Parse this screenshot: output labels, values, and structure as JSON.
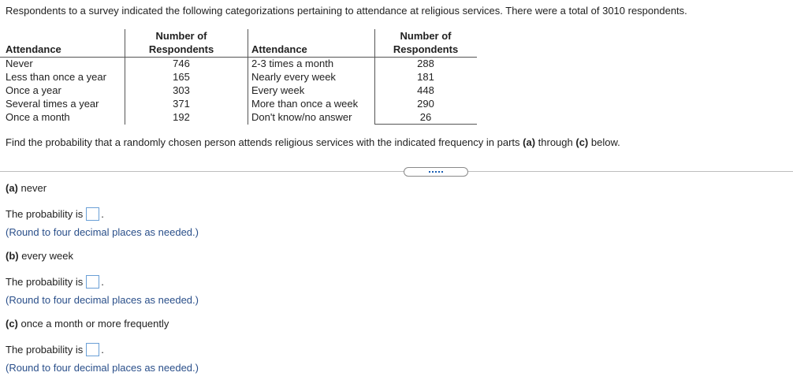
{
  "intro": "Respondents to a survey indicated the following categorizations pertaining to attendance at religious services. There were a total of 3010 respondents.",
  "table": {
    "left_header_attendance": "Attendance",
    "left_header_count_line1": "Number of",
    "left_header_count_line2": "Respondents",
    "right_header_attendance": "Attendance",
    "right_header_count_line1": "Number of",
    "right_header_count_line2": "Respondents",
    "left_rows": [
      {
        "attendance": "Never",
        "count": "746"
      },
      {
        "attendance": "Less than once a year",
        "count": "165"
      },
      {
        "attendance": "Once a year",
        "count": "303"
      },
      {
        "attendance": "Several times a year",
        "count": "371"
      },
      {
        "attendance": "Once a month",
        "count": "192"
      }
    ],
    "right_rows": [
      {
        "attendance": "2-3 times a month",
        "count": "288"
      },
      {
        "attendance": "Nearly every week",
        "count": "181"
      },
      {
        "attendance": "Every week",
        "count": "448"
      },
      {
        "attendance": "More than once a week",
        "count": "290"
      },
      {
        "attendance": "Don't know/no answer",
        "count": "26"
      }
    ]
  },
  "instructions": {
    "prefix": "Find the probability that a randomly chosen person attends religious services with the indicated frequency in parts ",
    "part_a": "(a)",
    "middle": " through ",
    "part_c": "(c)",
    "suffix": " below."
  },
  "parts": [
    {
      "letter": "(a)",
      "label": " never",
      "answer_prefix": "The probability is",
      "period": ".",
      "hint": "(Round to four decimal places as needed.)"
    },
    {
      "letter": "(b)",
      "label": " every week",
      "answer_prefix": "The probability is",
      "period": ".",
      "hint": "(Round to four decimal places as needed.)"
    },
    {
      "letter": "(c)",
      "label": " once a month or more frequently",
      "answer_prefix": "The probability is",
      "period": ".",
      "hint": "(Round to four decimal places as needed.)"
    }
  ]
}
